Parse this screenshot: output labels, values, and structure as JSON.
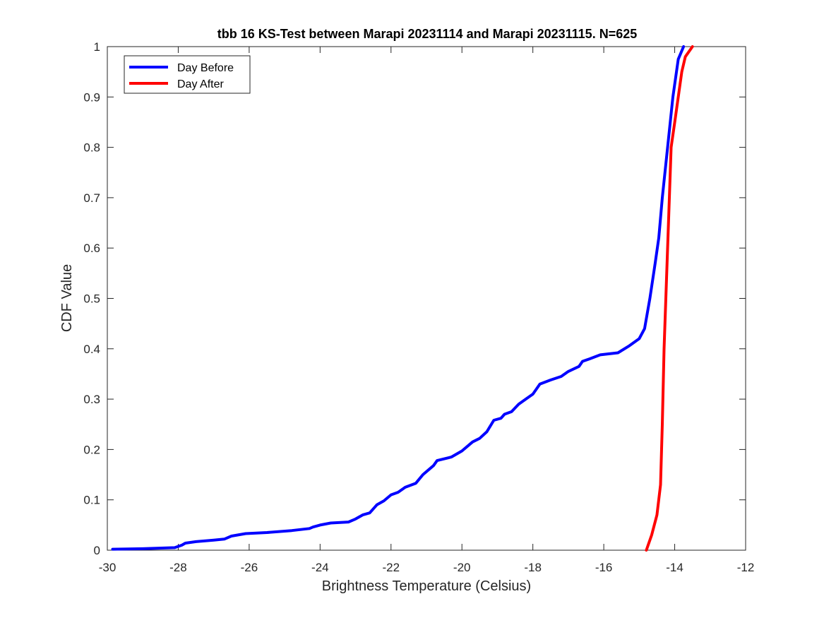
{
  "chart_data": {
    "type": "line",
    "title": "tbb 16 KS-Test between Marapi 20231114 and Marapi 20231115. N=625",
    "xlabel": "Brightness Temperature (Celsius)",
    "ylabel": "CDF Value",
    "xlim": [
      -30,
      -12
    ],
    "ylim": [
      0,
      1
    ],
    "grid": false,
    "legend_position": "top-left",
    "x_ticks": [
      -30,
      -28,
      -26,
      -24,
      -22,
      -20,
      -18,
      -16,
      -14,
      -12
    ],
    "x_tick_labels": [
      "-30",
      "-28",
      "-26",
      "-24",
      "-22",
      "-20",
      "-18",
      "-16",
      "-14",
      "-12"
    ],
    "y_ticks": [
      0,
      0.1,
      0.2,
      0.3,
      0.4,
      0.5,
      0.6,
      0.7,
      0.8,
      0.9,
      1
    ],
    "y_tick_labels": [
      "0",
      "0.1",
      "0.2",
      "0.3",
      "0.4",
      "0.5",
      "0.6",
      "0.7",
      "0.8",
      "0.9",
      "1"
    ],
    "series": [
      {
        "name": "Day Before",
        "color": "#0000ff",
        "points": [
          [
            -29.85,
            0.002
          ],
          [
            -29.0,
            0.003
          ],
          [
            -28.1,
            0.005
          ],
          [
            -27.9,
            0.01
          ],
          [
            -27.8,
            0.014
          ],
          [
            -27.5,
            0.017
          ],
          [
            -27.0,
            0.02
          ],
          [
            -26.7,
            0.022
          ],
          [
            -26.5,
            0.028
          ],
          [
            -26.1,
            0.033
          ],
          [
            -25.5,
            0.035
          ],
          [
            -24.8,
            0.039
          ],
          [
            -24.3,
            0.043
          ],
          [
            -24.2,
            0.046
          ],
          [
            -24.0,
            0.05
          ],
          [
            -23.7,
            0.054
          ],
          [
            -23.2,
            0.056
          ],
          [
            -23.0,
            0.062
          ],
          [
            -22.8,
            0.07
          ],
          [
            -22.6,
            0.074
          ],
          [
            -22.4,
            0.09
          ],
          [
            -22.2,
            0.098
          ],
          [
            -22.0,
            0.11
          ],
          [
            -21.8,
            0.115
          ],
          [
            -21.6,
            0.125
          ],
          [
            -21.3,
            0.133
          ],
          [
            -21.1,
            0.15
          ],
          [
            -20.8,
            0.168
          ],
          [
            -20.7,
            0.178
          ],
          [
            -20.3,
            0.185
          ],
          [
            -20.0,
            0.197
          ],
          [
            -19.7,
            0.215
          ],
          [
            -19.5,
            0.222
          ],
          [
            -19.3,
            0.235
          ],
          [
            -19.1,
            0.258
          ],
          [
            -18.9,
            0.262
          ],
          [
            -18.8,
            0.27
          ],
          [
            -18.6,
            0.275
          ],
          [
            -18.4,
            0.29
          ],
          [
            -18.2,
            0.3
          ],
          [
            -18.0,
            0.31
          ],
          [
            -17.8,
            0.33
          ],
          [
            -17.5,
            0.338
          ],
          [
            -17.2,
            0.345
          ],
          [
            -17.0,
            0.355
          ],
          [
            -16.7,
            0.365
          ],
          [
            -16.6,
            0.375
          ],
          [
            -16.4,
            0.38
          ],
          [
            -16.1,
            0.388
          ],
          [
            -15.6,
            0.392
          ],
          [
            -15.3,
            0.405
          ],
          [
            -15.0,
            0.42
          ],
          [
            -14.85,
            0.44
          ],
          [
            -14.7,
            0.5
          ],
          [
            -14.55,
            0.57
          ],
          [
            -14.45,
            0.62
          ],
          [
            -14.35,
            0.7
          ],
          [
            -14.2,
            0.8
          ],
          [
            -14.05,
            0.9
          ],
          [
            -13.9,
            0.975
          ],
          [
            -13.75,
            1.0
          ]
        ]
      },
      {
        "name": "Day After",
        "color": "#ff0000",
        "points": [
          [
            -14.8,
            0.0
          ],
          [
            -14.65,
            0.03
          ],
          [
            -14.5,
            0.07
          ],
          [
            -14.4,
            0.13
          ],
          [
            -14.35,
            0.25
          ],
          [
            -14.3,
            0.4
          ],
          [
            -14.25,
            0.5
          ],
          [
            -14.2,
            0.6
          ],
          [
            -14.15,
            0.7
          ],
          [
            -14.1,
            0.8
          ],
          [
            -14.0,
            0.85
          ],
          [
            -13.9,
            0.9
          ],
          [
            -13.8,
            0.95
          ],
          [
            -13.7,
            0.98
          ],
          [
            -13.5,
            1.0
          ]
        ]
      }
    ]
  }
}
